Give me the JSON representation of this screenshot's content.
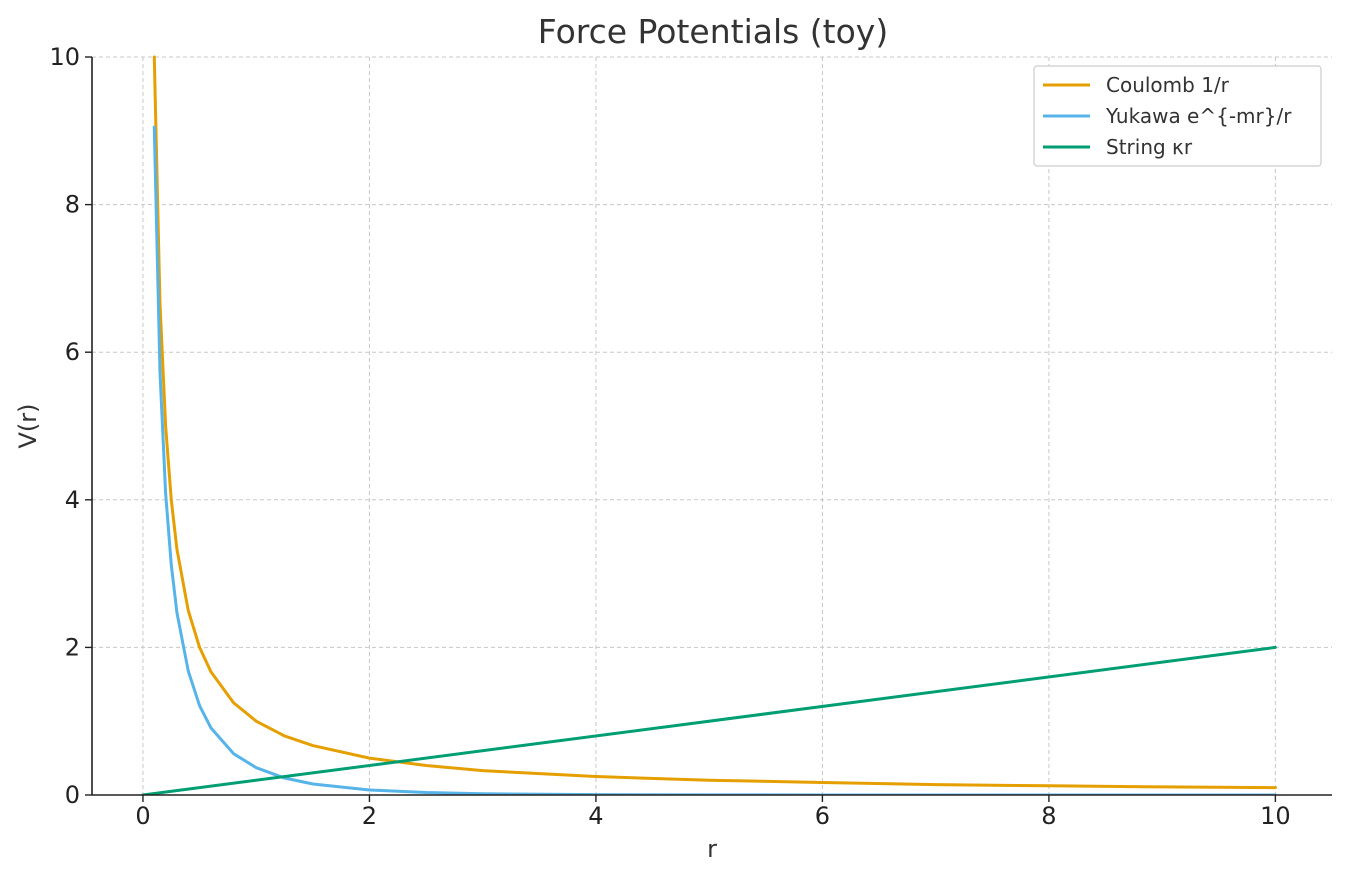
{
  "chart_data": {
    "type": "line",
    "title": "Force Potentials (toy)",
    "xlabel": "r",
    "ylabel": "V(r)",
    "xlim": [
      -0.45,
      10.5
    ],
    "ylim": [
      0,
      10
    ],
    "xticks": [
      0,
      2,
      4,
      6,
      8,
      10
    ],
    "yticks": [
      0,
      2,
      4,
      6,
      8,
      10
    ],
    "grid": true,
    "legend_position": "top-right",
    "series": [
      {
        "name": "Coulomb 1/r",
        "color": "#E69F00",
        "x": [
          0.1,
          0.15,
          0.2,
          0.25,
          0.3,
          0.4,
          0.5,
          0.6,
          0.8,
          1.0,
          1.25,
          1.5,
          2.0,
          2.5,
          3.0,
          4.0,
          5.0,
          6.0,
          7.0,
          8.0,
          9.0,
          10.0
        ],
        "y": [
          10.0,
          6.67,
          5.0,
          4.0,
          3.33,
          2.5,
          2.0,
          1.67,
          1.25,
          1.0,
          0.8,
          0.67,
          0.5,
          0.4,
          0.33,
          0.25,
          0.2,
          0.17,
          0.14,
          0.125,
          0.11,
          0.1
        ]
      },
      {
        "name": "Yukawa e^{-mr}/r",
        "color": "#56B4E9",
        "x": [
          0.1,
          0.15,
          0.2,
          0.25,
          0.3,
          0.4,
          0.5,
          0.6,
          0.8,
          1.0,
          1.25,
          1.5,
          2.0,
          2.5,
          3.0,
          4.0,
          5.0,
          6.0,
          7.0,
          8.0,
          9.0,
          10.0
        ],
        "y": [
          9.05,
          5.74,
          4.09,
          3.12,
          2.47,
          1.68,
          1.21,
          0.91,
          0.56,
          0.37,
          0.23,
          0.149,
          0.068,
          0.033,
          0.017,
          0.0046,
          0.0013,
          0.0004,
          0.0001,
          0.0,
          0.0,
          0.0
        ]
      },
      {
        "name": "String κr",
        "color": "#009E73",
        "x": [
          0,
          10
        ],
        "y": [
          0,
          2
        ]
      }
    ]
  }
}
